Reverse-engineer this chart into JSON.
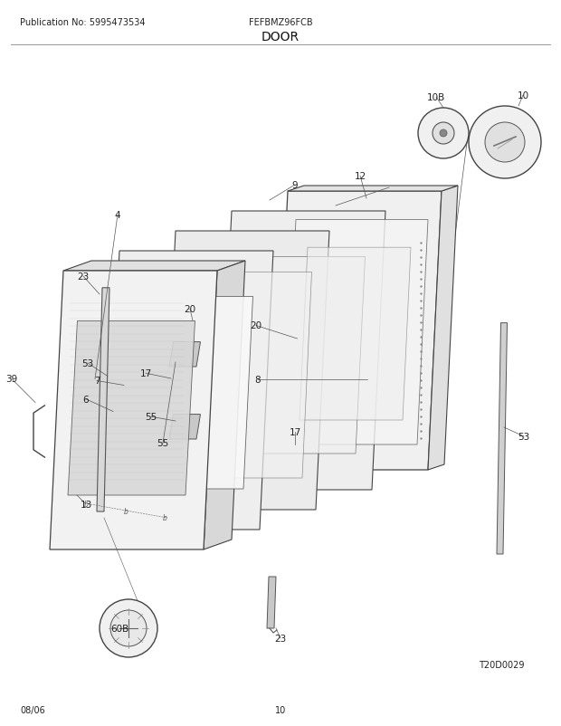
{
  "pub_no": "Publication No: 5995473534",
  "model": "FEFBMZ96FCB",
  "section": "DOOR",
  "date": "08/06",
  "page": "10",
  "diagram_code": "T20D0029",
  "bg_color": "#ffffff",
  "title_fontsize": 9,
  "label_fontsize": 7.5,
  "small_fontsize": 7,
  "line_color": "#333333",
  "fill_light": "#f0f0f0",
  "fill_mid": "#e0e0e0",
  "fill_dark": "#c8c8c8",
  "fill_glass": "#e8e8e8",
  "perspective_skew": 0.18
}
